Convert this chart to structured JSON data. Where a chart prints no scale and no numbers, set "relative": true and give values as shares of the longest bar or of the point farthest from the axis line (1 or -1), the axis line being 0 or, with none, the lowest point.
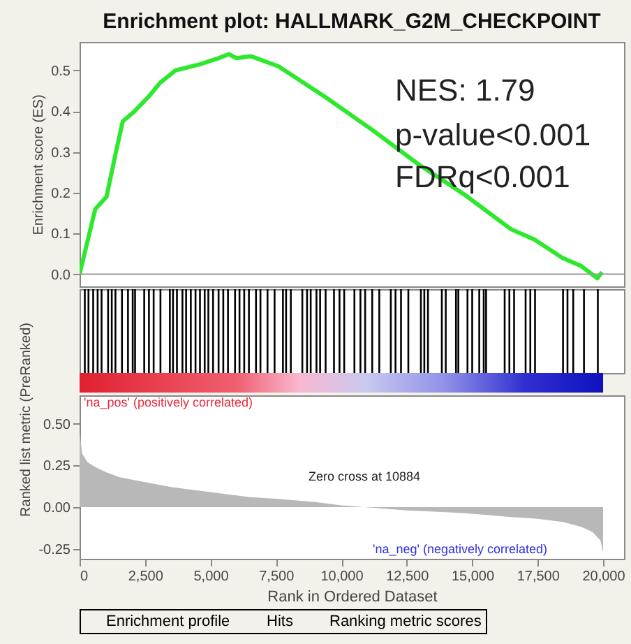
{
  "chart_data": [
    {
      "type": "line",
      "title": "Enrichment plot: HALLMARK_G2M_CHECKPOINT",
      "ylabel": "Enrichment score (ES)",
      "xlim": [
        0,
        20800
      ],
      "ylim": [
        -0.03,
        0.57
      ],
      "yticks": [
        {
          "value": 0,
          "label": "0.0"
        },
        {
          "value": 0.1,
          "label": "0.1"
        },
        {
          "value": 0.2,
          "label": "0.2"
        },
        {
          "value": 0.3,
          "label": "0.3"
        },
        {
          "value": 0.4,
          "label": "0.4"
        },
        {
          "value": 0.5,
          "label": "0.5"
        }
      ],
      "tick_labels": "y",
      "ref_lines": [
        {
          "axis": "y",
          "value": 0,
          "color": "#999999"
        }
      ],
      "annotations": [
        "NES: 1.79",
        "p-value<0.001",
        "FDRq<0.001"
      ],
      "series": [
        {
          "name": "Enrichment profile",
          "color": "#2ee82e",
          "x": [
            0,
            600,
            1030,
            1390,
            1650,
            2100,
            2630,
            3080,
            3660,
            4590,
            5300,
            5700,
            6000,
            6540,
            7600,
            9380,
            11160,
            12940,
            14710,
            16490,
            17380,
            18450,
            19160,
            19780,
            19960
          ],
          "values": [
            0,
            0.16,
            0.19,
            0.3,
            0.375,
            0.4,
            0.435,
            0.47,
            0.5,
            0.515,
            0.53,
            0.54,
            0.53,
            0.535,
            0.51,
            0.435,
            0.355,
            0.27,
            0.195,
            0.11,
            0.085,
            0.04,
            0.02,
            -0.01,
            0.005
          ]
        }
      ]
    },
    {
      "type": "bar",
      "relative": true,
      "tick_labels": false,
      "xlim": [
        0,
        20800
      ],
      "series": [
        {
          "name": "Hits",
          "color": "#000000",
          "x": [
            200,
            340,
            520,
            690,
            840,
            1090,
            1230,
            1370,
            1620,
            1850,
            2030,
            2120,
            2470,
            2650,
            2830,
            3090,
            3450,
            3570,
            3720,
            3930,
            4070,
            4250,
            4430,
            4600,
            4780,
            4920,
            5100,
            5310,
            5490,
            5670,
            5940,
            6110,
            6290,
            6470,
            6740,
            6910,
            7180,
            7450,
            7770,
            7890,
            8070,
            8510,
            8690,
            8830,
            9050,
            9190,
            9400,
            9720,
            9930,
            10110,
            10500,
            10730,
            10910,
            11180,
            11450,
            11890,
            12070,
            12280,
            12560,
            13040,
            13170,
            13310,
            13840,
            13990,
            14380,
            14470,
            14820,
            15000,
            15270,
            15440,
            15530,
            16240,
            16420,
            16600,
            17040,
            17220,
            17400,
            18470,
            18640,
            18860,
            19270,
            19800
          ],
          "values": [
            1,
            1,
            1,
            1,
            1,
            1,
            1,
            1,
            1,
            1,
            1,
            1,
            1,
            1,
            1,
            1,
            1,
            1,
            1,
            1,
            1,
            1,
            1,
            1,
            1,
            1,
            1,
            1,
            1,
            1,
            1,
            1,
            1,
            1,
            1,
            1,
            1,
            1,
            1,
            1,
            1,
            1,
            1,
            1,
            1,
            1,
            1,
            1,
            1,
            1,
            1,
            1,
            1,
            1,
            1,
            1,
            1,
            1,
            1,
            1,
            1,
            1,
            1,
            1,
            1,
            1,
            1,
            1,
            1,
            1,
            1,
            1,
            1,
            1,
            1,
            1,
            1,
            1,
            1,
            1,
            1,
            1
          ]
        }
      ]
    },
    {
      "type": "area",
      "xlabel": "Rank in Ordered Dataset",
      "ylabel": "Ranked list metric (PreRanked)",
      "xlim": [
        0,
        20800
      ],
      "ylim": [
        -0.31,
        0.67
      ],
      "legend": "bottom",
      "xticks": [
        0,
        {
          "value": 2500,
          "label": "2,500"
        },
        {
          "value": 5000,
          "label": "5,000"
        },
        {
          "value": 7500,
          "label": "7,500"
        },
        {
          "value": 10000,
          "label": "10,000"
        },
        {
          "value": 12500,
          "label": "12,500"
        },
        {
          "value": 15000,
          "label": "15,000"
        },
        {
          "value": 17500,
          "label": "17,500"
        },
        {
          "value": 20000,
          "label": "20,000"
        }
      ],
      "yticks": [
        {
          "value": -0.25,
          "label": "-0.25"
        },
        {
          "value": 0,
          "label": "0.00"
        },
        {
          "value": 0.25,
          "label": "0.25"
        },
        {
          "value": 0.5,
          "label": "0.50"
        }
      ],
      "annotations": [
        "'na_pos' (positively correlated)",
        "Zero cross at 10884",
        "'na_neg' (negatively correlated)"
      ],
      "series": [
        {
          "name": "Ranking metric scores",
          "color": "#b8b8b8",
          "x": [
            0,
            100,
            300,
            600,
            1000,
            1500,
            2500,
            3500,
            5000,
            6500,
            7500,
            9000,
            10000,
            10884,
            12500,
            14000,
            15000,
            16500,
            17500,
            18500,
            19200,
            19600,
            19900,
            20000
          ],
          "values": [
            0.45,
            0.32,
            0.27,
            0.24,
            0.21,
            0.18,
            0.15,
            0.12,
            0.09,
            0.06,
            0.05,
            0.03,
            0.01,
            0,
            -0.02,
            -0.03,
            -0.04,
            -0.06,
            -0.07,
            -0.09,
            -0.12,
            -0.15,
            -0.2,
            -0.27
          ]
        }
      ]
    }
  ]
}
